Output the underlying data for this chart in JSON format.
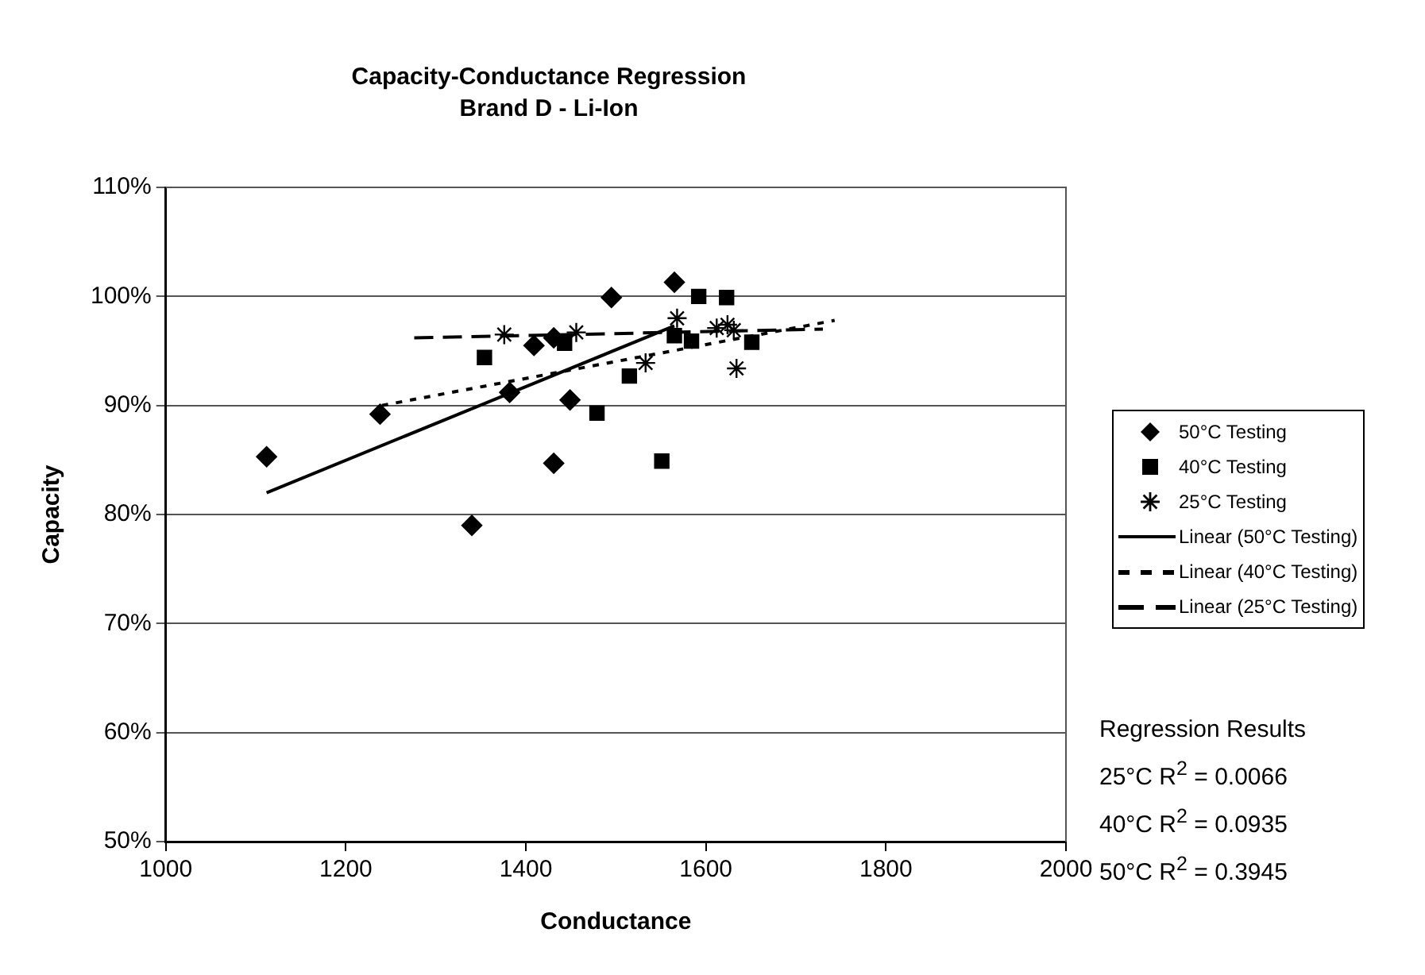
{
  "chart_data": {
    "type": "scatter",
    "title": "Capacity-Conductance Regression",
    "subtitle": "Brand D - Li-Ion",
    "xlabel": "Conductance",
    "ylabel": "Capacity",
    "xlim": [
      1000,
      2000
    ],
    "xticks": [
      1000,
      1200,
      1400,
      1600,
      1800,
      2000
    ],
    "ylim": [
      50,
      110
    ],
    "yticks": [
      {
        "value": 50,
        "label": "50%"
      },
      {
        "value": 60,
        "label": "60%"
      },
      {
        "value": 70,
        "label": "70%"
      },
      {
        "value": 80,
        "label": "80%"
      },
      {
        "value": 90,
        "label": "90%"
      },
      {
        "value": 100,
        "label": "100%"
      },
      {
        "value": 110,
        "label": "110%"
      }
    ],
    "grid": "y",
    "legend": "right",
    "series": [
      {
        "name": "50°C Testing",
        "marker": "diamond",
        "color": "#000000",
        "x": [
          1112,
          1238,
          1340,
          1382,
          1409,
          1431,
          1431,
          1449,
          1495,
          1565
        ],
        "values": [
          85.3,
          89.2,
          79.0,
          91.2,
          95.5,
          84.7,
          96.2,
          90.5,
          99.9,
          101.3
        ]
      },
      {
        "name": "40°C Testing",
        "marker": "square",
        "color": "#000000",
        "x": [
          1354,
          1443,
          1479,
          1515,
          1551,
          1565,
          1584,
          1592,
          1623,
          1651
        ],
        "values": [
          94.4,
          95.7,
          89.3,
          92.7,
          84.9,
          96.4,
          95.9,
          100.0,
          99.9,
          95.8
        ]
      },
      {
        "name": "25°C Testing",
        "marker": "cross",
        "color": "#000000",
        "x": [
          1376,
          1456,
          1533,
          1568,
          1612,
          1624,
          1631,
          1634
        ],
        "values": [
          96.5,
          96.7,
          93.9,
          98.0,
          97.1,
          97.4,
          96.9,
          93.4
        ]
      },
      {
        "name": "Linear (50°C Testing)",
        "type": "line",
        "line_style": "solid",
        "marker": "none",
        "color": "#000000",
        "x": [
          1112,
          1565
        ],
        "values": [
          82.0,
          97.3
        ]
      },
      {
        "name": "Linear (40°C Testing)",
        "type": "line",
        "line_style": "dotted",
        "marker": "none",
        "color": "#000000",
        "x": [
          1240,
          1743
        ],
        "values": [
          90.0,
          97.8
        ]
      },
      {
        "name": "Linear (25°C Testing)",
        "type": "line",
        "line_style": "dashed",
        "marker": "none",
        "color": "#000000",
        "x": [
          1276,
          1730
        ],
        "values": [
          96.2,
          97.0
        ]
      }
    ],
    "annotations": [
      "Regression Results",
      "25°C R$^{2}$ = 0.0066",
      "40°C R$^{2}$ = 0.0935",
      "50°C R$^{2}$ = 0.3945"
    ]
  }
}
